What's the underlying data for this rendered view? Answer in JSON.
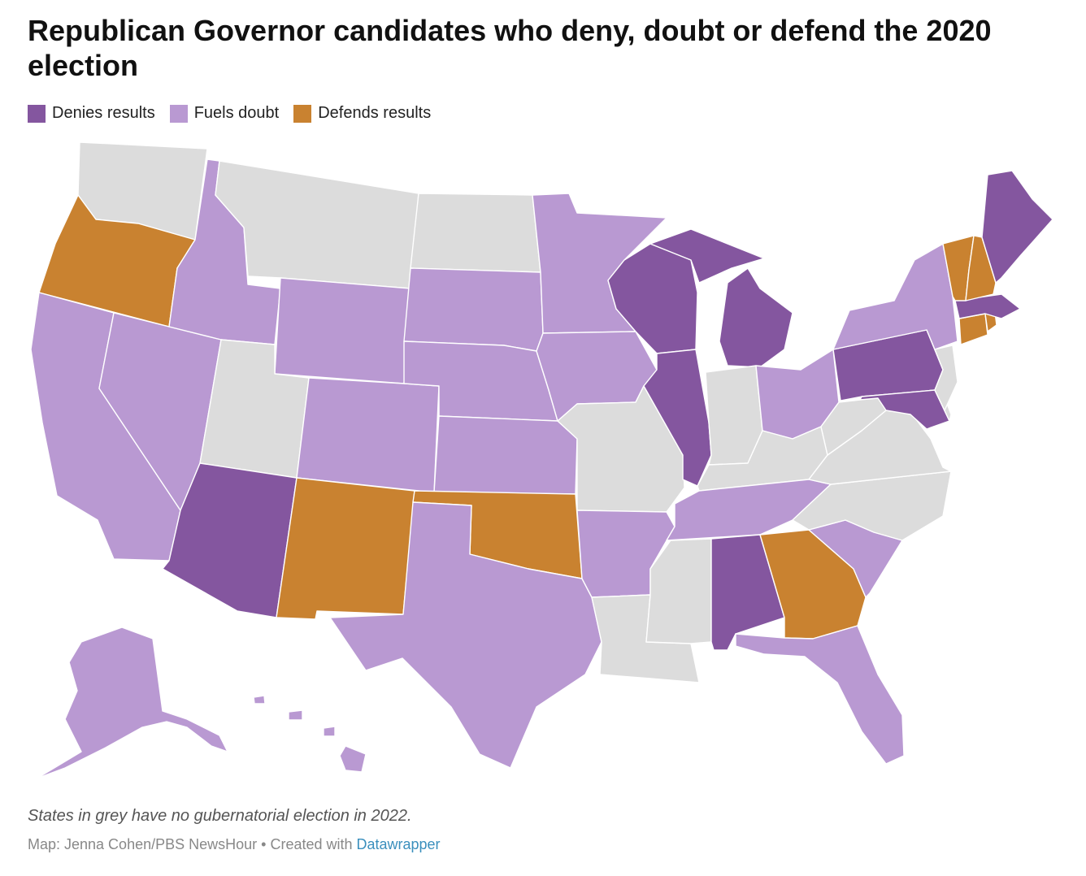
{
  "title": "Republican Governor candidates who deny, doubt or defend the 2020 election",
  "legend": [
    {
      "label": "Denies results",
      "color": "#84569f"
    },
    {
      "label": "Fuels doubt",
      "color": "#b999d2"
    },
    {
      "label": "Defends results",
      "color": "#c98230"
    }
  ],
  "colors": {
    "deny": "#84569f",
    "doubt": "#b999d2",
    "defend": "#c98230",
    "none": "#dcdcdc"
  },
  "states": {
    "deny": [
      "Arizona",
      "Wisconsin",
      "Michigan",
      "Illinois",
      "Pennsylvania",
      "Maryland",
      "Alabama",
      "Maine",
      "Massachusetts"
    ],
    "doubt": [
      "California",
      "Nevada",
      "Idaho",
      "Wyoming",
      "Colorado",
      "Nebraska",
      "South Dakota",
      "Kansas",
      "Minnesota",
      "Iowa",
      "Texas",
      "Arkansas",
      "Tennessee",
      "South Carolina",
      "Florida",
      "Ohio",
      "New York",
      "Alaska",
      "Hawaii"
    ],
    "defend": [
      "Oregon",
      "New Mexico",
      "Oklahoma",
      "Georgia",
      "Vermont",
      "New Hampshire",
      "Connecticut",
      "Rhode Island"
    ],
    "none": [
      "Washington",
      "Montana",
      "North Dakota",
      "Utah",
      "Missouri",
      "Louisiana",
      "Mississippi",
      "Indiana",
      "Kentucky",
      "West Virginia",
      "Virginia",
      "North Carolina",
      "New Jersey",
      "Delaware"
    ]
  },
  "note": "States in grey have no gubernatorial election in 2022.",
  "credit": {
    "prefix": "Map: Jenna Cohen/PBS NewsHour • Created with ",
    "link": "Datawrapper"
  }
}
